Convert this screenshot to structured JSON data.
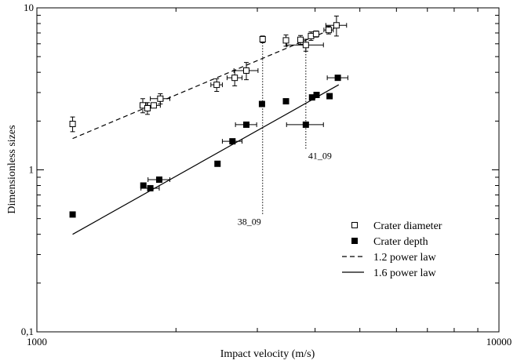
{
  "chart_data": {
    "type": "scatter",
    "title": "",
    "xlabel": "Impact velocity (m/s)",
    "ylabel": "Dimensionless sizes",
    "xscale": "log",
    "yscale": "log",
    "xlim": [
      1000,
      10000
    ],
    "ylim": [
      0.1,
      10
    ],
    "x_ticks": [
      {
        "value": 1000,
        "label": "1000"
      },
      {
        "value": 10000,
        "label": "10000"
      }
    ],
    "y_ticks": [
      {
        "value": 0.1,
        "label": "0,1"
      },
      {
        "value": 1,
        "label": "1"
      },
      {
        "value": 10,
        "label": "10"
      }
    ],
    "grid": false,
    "legend_position": "bottom-right",
    "series": [
      {
        "name": "Crater diameter",
        "marker": "open-square",
        "points": [
          {
            "x": 1195,
            "y": 1.92,
            "xerr": 0,
            "yerr": 0.2
          },
          {
            "x": 1695,
            "y": 2.5,
            "xerr": 0,
            "yerr": 0.25
          },
          {
            "x": 1735,
            "y": 2.4,
            "xerr": 0,
            "yerr": 0.2
          },
          {
            "x": 1790,
            "y": 2.5,
            "xerr": 60,
            "yerr": 0
          },
          {
            "x": 1850,
            "y": 2.75,
            "xerr": 90,
            "yerr": 0.2
          },
          {
            "x": 2450,
            "y": 3.35,
            "xerr": 70,
            "yerr": 0.3
          },
          {
            "x": 2680,
            "y": 3.7,
            "xerr": 100,
            "yerr": 0.4
          },
          {
            "x": 2840,
            "y": 4.1,
            "xerr": 170,
            "yerr": 0.5
          },
          {
            "x": 3080,
            "y": 6.4,
            "xerr": 0,
            "yerr": 0.3
          },
          {
            "x": 3460,
            "y": 6.3,
            "xerr": 0,
            "yerr": 0.5
          },
          {
            "x": 3720,
            "y": 6.35,
            "xerr": 0,
            "yerr": 0.4
          },
          {
            "x": 3820,
            "y": 5.9,
            "xerr": 350,
            "yerr": 0.5
          },
          {
            "x": 3920,
            "y": 6.7,
            "xerr": 0,
            "yerr": 0.4
          },
          {
            "x": 4020,
            "y": 6.9,
            "xerr": 0,
            "yerr": 0.3
          },
          {
            "x": 4280,
            "y": 7.3,
            "xerr": 100,
            "yerr": 0.4
          },
          {
            "x": 4450,
            "y": 7.8,
            "xerr": 230,
            "yerr": 1.1
          }
        ]
      },
      {
        "name": "Crater depth",
        "marker": "filled-square",
        "points": [
          {
            "x": 1195,
            "y": 0.53,
            "xerr": 0,
            "yerr": 0
          },
          {
            "x": 1700,
            "y": 0.8,
            "xerr": 0,
            "yerr": 0
          },
          {
            "x": 1760,
            "y": 0.77,
            "xerr": 80,
            "yerr": 0
          },
          {
            "x": 1840,
            "y": 0.87,
            "xerr": 100,
            "yerr": 0
          },
          {
            "x": 2460,
            "y": 1.09,
            "xerr": 0,
            "yerr": 0
          },
          {
            "x": 2650,
            "y": 1.5,
            "xerr": 130,
            "yerr": 0
          },
          {
            "x": 2840,
            "y": 1.9,
            "xerr": 150,
            "yerr": 0
          },
          {
            "x": 3070,
            "y": 2.55,
            "xerr": 0,
            "yerr": 0
          },
          {
            "x": 3460,
            "y": 2.65,
            "xerr": 0,
            "yerr": 0
          },
          {
            "x": 3820,
            "y": 1.9,
            "xerr": 350,
            "yerr": 0
          },
          {
            "x": 3940,
            "y": 2.8,
            "xerr": 0,
            "yerr": 0
          },
          {
            "x": 4030,
            "y": 2.9,
            "xerr": 0,
            "yerr": 0
          },
          {
            "x": 4300,
            "y": 2.85,
            "xerr": 0,
            "yerr": 0
          },
          {
            "x": 4480,
            "y": 3.7,
            "xerr": 230,
            "yerr": 0
          }
        ]
      },
      {
        "name": "1.2 power law",
        "line_style": "dashed",
        "points": [
          {
            "x": 1195,
            "y": 1.56
          },
          {
            "x": 4500,
            "y": 7.7
          }
        ]
      },
      {
        "name": "1.6 power law",
        "line_style": "solid",
        "points": [
          {
            "x": 1195,
            "y": 0.4
          },
          {
            "x": 4500,
            "y": 3.35
          }
        ]
      }
    ],
    "annotations": [
      {
        "text": "38_09",
        "x": 3080,
        "y_top": 6.1,
        "y_bottom": 0.53
      },
      {
        "text": "41_09",
        "x": 3820,
        "y_top": 5.6,
        "y_bottom": 1.35
      }
    ]
  }
}
